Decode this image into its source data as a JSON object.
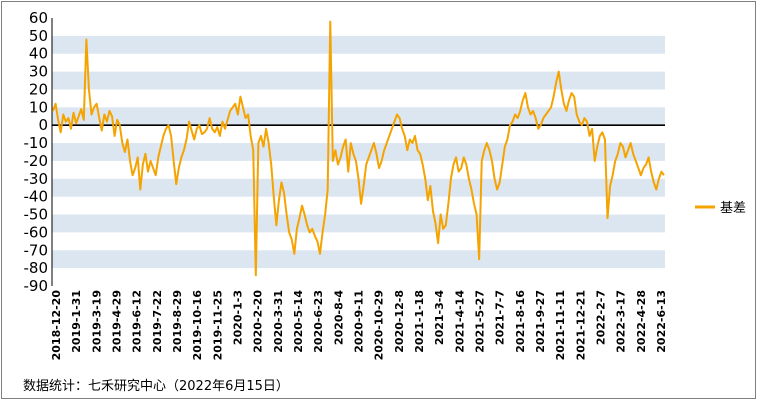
{
  "source_note": "数据统计：七禾研究中心（2022年6月15日）",
  "chart_data": {
    "type": "line",
    "title": "",
    "xlabel": "",
    "ylabel": "",
    "ylim": [
      -90,
      60
    ],
    "yticks": [
      60,
      50,
      40,
      30,
      20,
      10,
      0,
      -10,
      -20,
      -30,
      -40,
      -50,
      -60,
      -70,
      -80,
      -90
    ],
    "x_tick_labels": [
      "2018-12-20",
      "2019-1-31",
      "2019-3-19",
      "2019-4-29",
      "2019-6-12",
      "2019-7-22",
      "2019-8-29",
      "2019-10-16",
      "2019-11-25",
      "2020-1-3",
      "2020-2-20",
      "2020-3-31",
      "2020-5-14",
      "2020-6-23",
      "2020-8-4",
      "2020-9-11",
      "2020-10-29",
      "2020-12-8",
      "2021-1-18",
      "2021-3-4",
      "2021-4-14",
      "2021-5-27",
      "2021-7-7",
      "2021-8-16",
      "2021-9-27",
      "2021-11-11",
      "2021-12-21",
      "2022-2-7",
      "2022-3-17",
      "2022-4-28",
      "2022-6-13"
    ],
    "grid": "horizontal-bands",
    "band_color": "#dce6f1",
    "zero_line_color": "#000000",
    "legend_position": "right",
    "series": [
      {
        "name": "基差",
        "color": "#f5a300",
        "values": [
          8,
          12,
          3,
          -4,
          6,
          2,
          4,
          -2,
          7,
          1,
          5,
          9,
          3,
          48,
          20,
          6,
          10,
          12,
          4,
          -3,
          6,
          2,
          8,
          5,
          -6,
          3,
          0,
          -10,
          -15,
          -8,
          -20,
          -28,
          -24,
          -18,
          -36,
          -22,
          -16,
          -26,
          -20,
          -24,
          -28,
          -18,
          -12,
          -6,
          -2,
          0,
          -6,
          -20,
          -33,
          -24,
          -18,
          -14,
          -8,
          2,
          -3,
          -8,
          -2,
          0,
          -5,
          -4,
          -2,
          4,
          -2,
          -4,
          -1,
          -6,
          2,
          -2,
          3,
          8,
          10,
          12,
          6,
          16,
          10,
          4,
          6,
          -6,
          -14,
          -84,
          -10,
          -6,
          -12,
          -2,
          -10,
          -22,
          -40,
          -56,
          -42,
          -32,
          -38,
          -50,
          -60,
          -64,
          -72,
          -58,
          -52,
          -45,
          -50,
          -56,
          -60,
          -58,
          -62,
          -65,
          -72,
          -60,
          -50,
          -36,
          58,
          -20,
          -14,
          -22,
          -18,
          -12,
          -8,
          -26,
          -10,
          -16,
          -20,
          -30,
          -44,
          -34,
          -22,
          -18,
          -14,
          -10,
          -16,
          -24,
          -20,
          -14,
          -10,
          -6,
          -2,
          2,
          6,
          4,
          -2,
          -6,
          -14,
          -8,
          -10,
          -6,
          -14,
          -16,
          -22,
          -30,
          -42,
          -34,
          -48,
          -55,
          -66,
          -50,
          -58,
          -56,
          -44,
          -30,
          -22,
          -18,
          -26,
          -24,
          -18,
          -22,
          -30,
          -36,
          -44,
          -50,
          -75,
          -20,
          -14,
          -10,
          -14,
          -20,
          -30,
          -36,
          -32,
          -22,
          -12,
          -8,
          0,
          2,
          6,
          4,
          8,
          14,
          18,
          10,
          6,
          8,
          4,
          -2,
          0,
          4,
          6,
          8,
          10,
          16,
          24,
          30,
          20,
          12,
          8,
          14,
          18,
          16,
          6,
          2,
          0,
          4,
          2,
          -6,
          -2,
          -20,
          -12,
          -6,
          -4,
          -8,
          -52,
          -34,
          -28,
          -20,
          -16,
          -10,
          -12,
          -18,
          -14,
          -10,
          -16,
          -20,
          -24,
          -28,
          -24,
          -22,
          -18,
          -26,
          -32,
          -36,
          -30,
          -26,
          -28
        ]
      }
    ]
  }
}
